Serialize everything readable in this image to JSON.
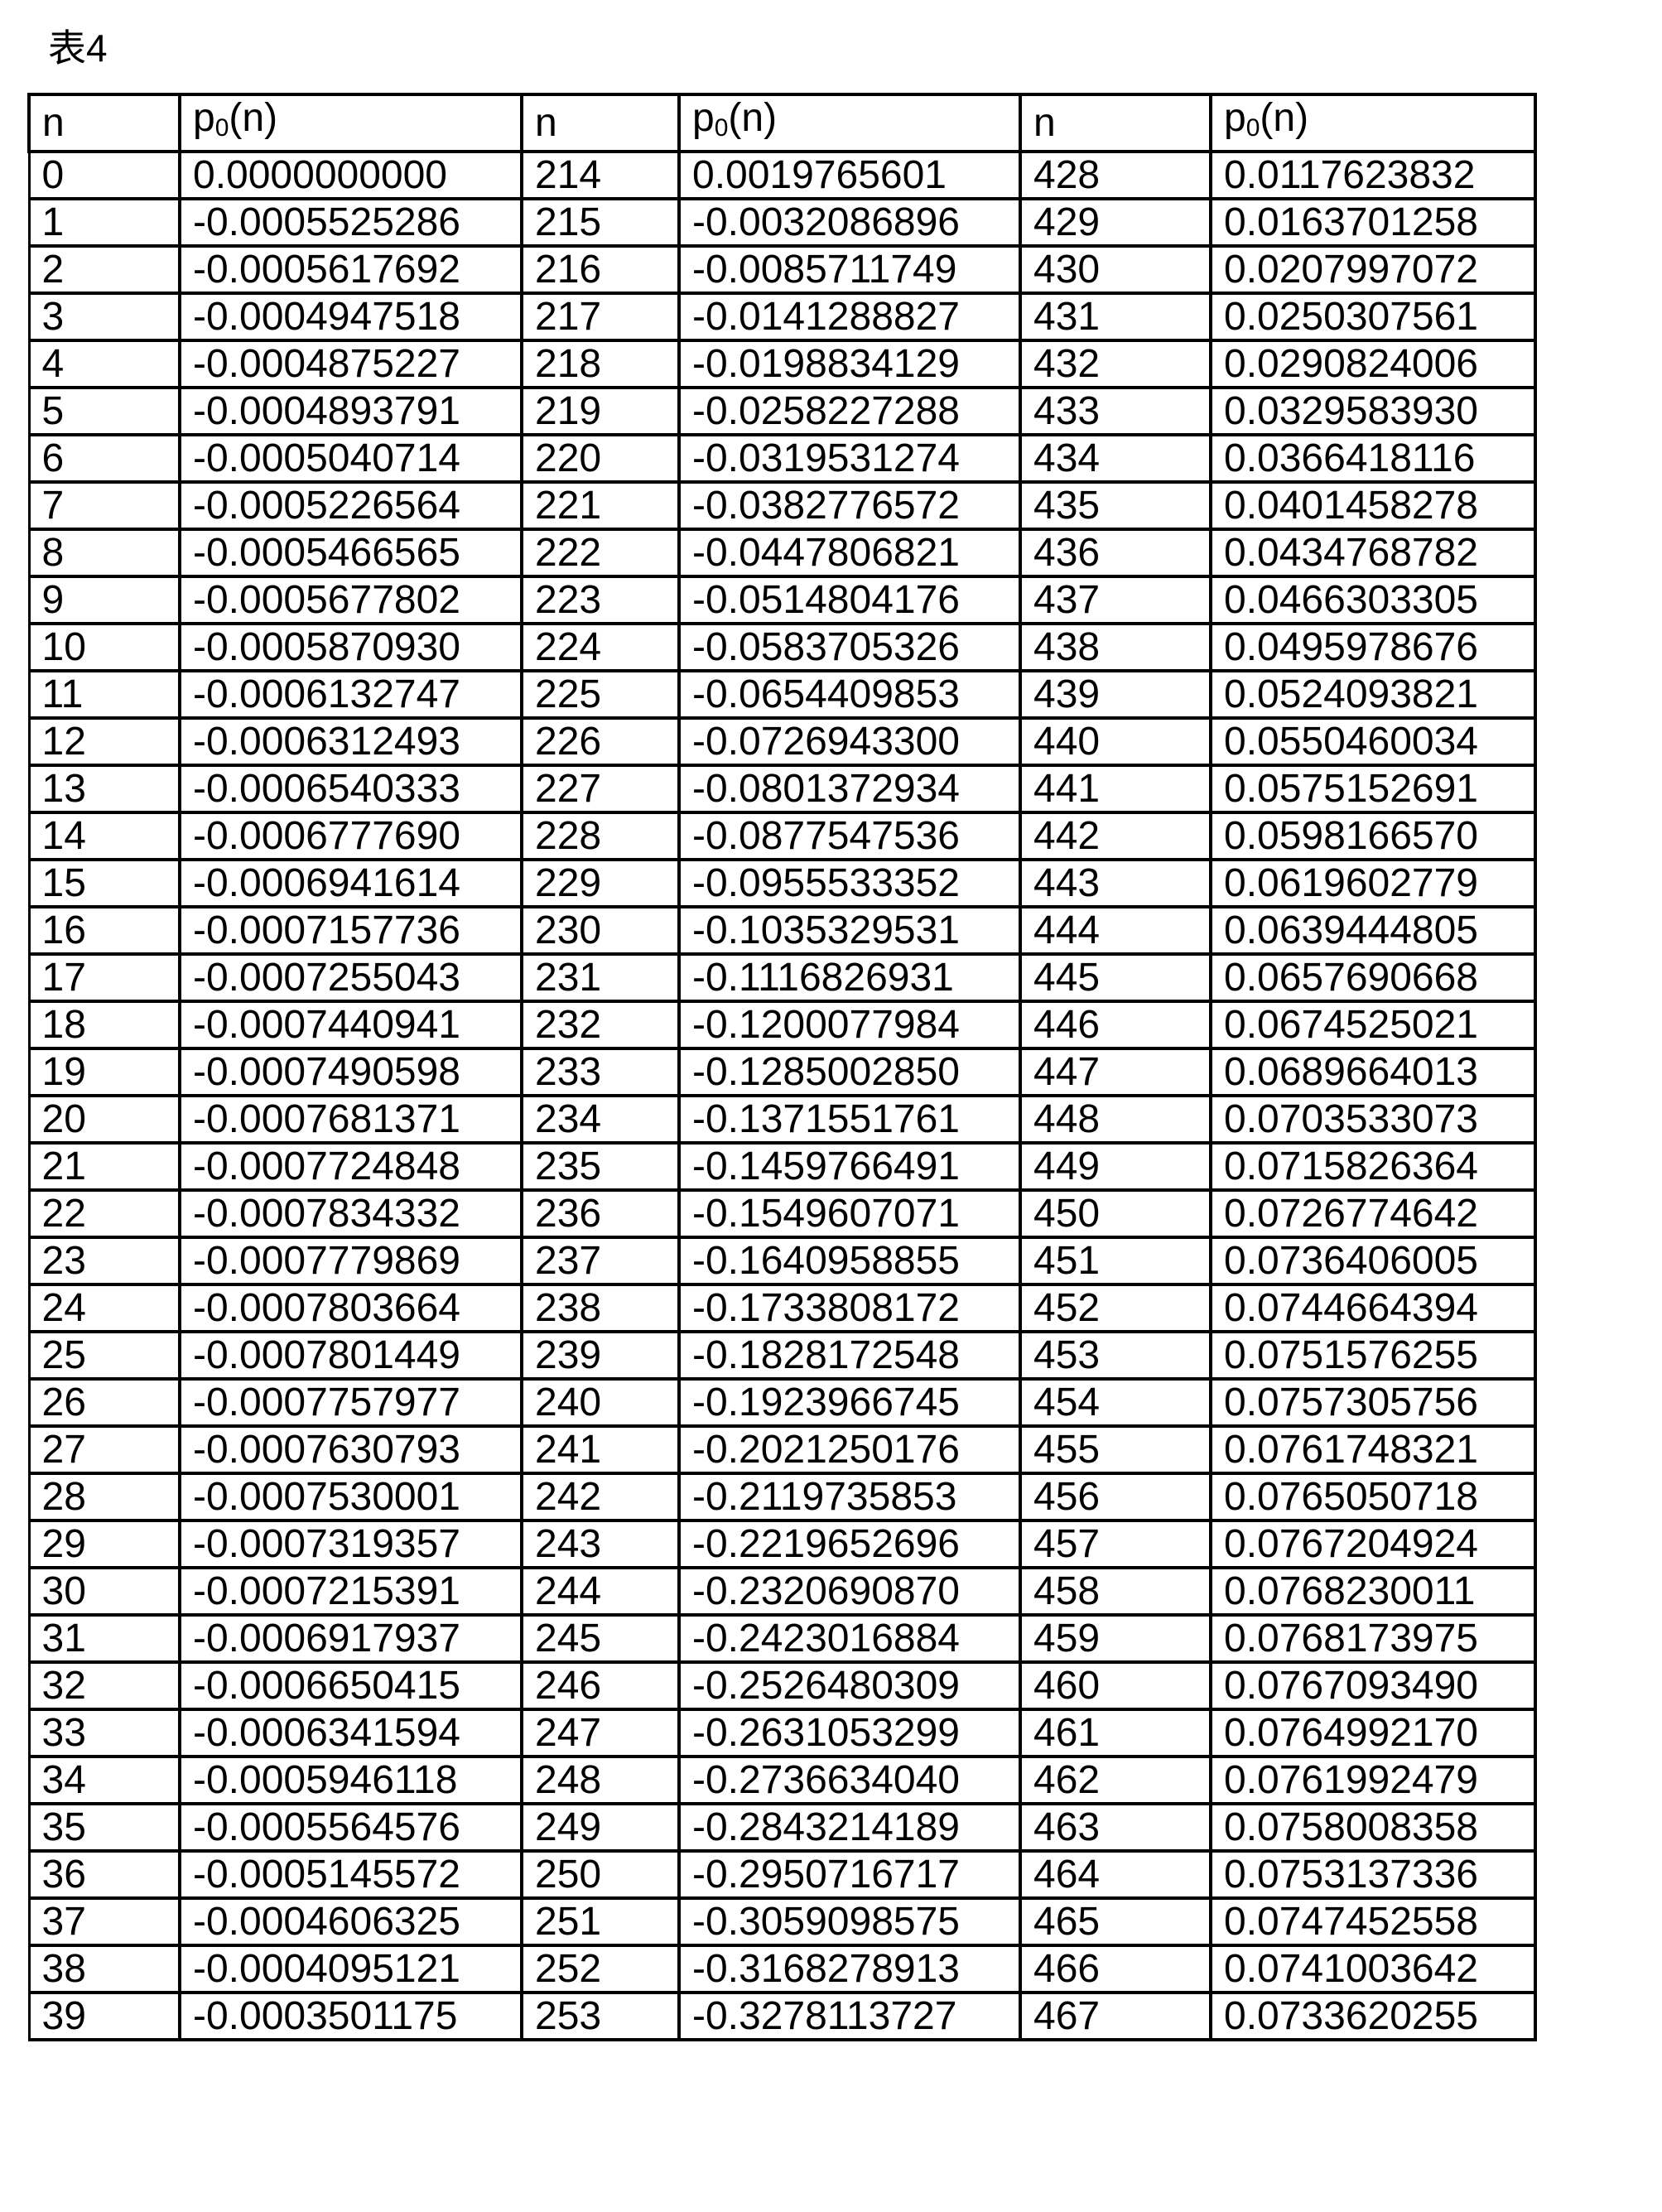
{
  "title": "表4",
  "table": {
    "headers": [
      {
        "base": "n",
        "sub": "",
        "suffix": ""
      },
      {
        "base": "p",
        "sub": "0",
        "suffix": "(n)"
      },
      {
        "base": "n",
        "sub": "",
        "suffix": ""
      },
      {
        "base": "p",
        "sub": "0",
        "suffix": "(n)"
      },
      {
        "base": "n",
        "sub": "",
        "suffix": ""
      },
      {
        "base": "p",
        "sub": "0",
        "suffix": "(n)"
      }
    ],
    "rows": [
      [
        "0",
        "0.0000000000",
        "214",
        "0.0019765601",
        "428",
        "0.0117623832"
      ],
      [
        "1",
        "-0.0005525286",
        "215",
        "-0.0032086896",
        "429",
        "0.0163701258"
      ],
      [
        "2",
        "-0.0005617692",
        "216",
        "-0.0085711749",
        "430",
        "0.0207997072"
      ],
      [
        "3",
        "-0.0004947518",
        "217",
        "-0.0141288827",
        "431",
        "0.0250307561"
      ],
      [
        "4",
        "-0.0004875227",
        "218",
        "-0.0198834129",
        "432",
        "0.0290824006"
      ],
      [
        "5",
        "-0.0004893791",
        "219",
        "-0.0258227288",
        "433",
        "0.0329583930"
      ],
      [
        "6",
        "-0.0005040714",
        "220",
        "-0.0319531274",
        "434",
        "0.0366418116"
      ],
      [
        "7",
        "-0.0005226564",
        "221",
        "-0.0382776572",
        "435",
        "0.0401458278"
      ],
      [
        "8",
        "-0.0005466565",
        "222",
        "-0.0447806821",
        "436",
        "0.0434768782"
      ],
      [
        "9",
        "-0.0005677802",
        "223",
        "-0.0514804176",
        "437",
        "0.0466303305"
      ],
      [
        "10",
        "-0.0005870930",
        "224",
        "-0.0583705326",
        "438",
        "0.0495978676"
      ],
      [
        "11",
        "-0.0006132747",
        "225",
        "-0.0654409853",
        "439",
        "0.0524093821"
      ],
      [
        "12",
        "-0.0006312493",
        "226",
        "-0.0726943300",
        "440",
        "0.0550460034"
      ],
      [
        "13",
        "-0.0006540333",
        "227",
        "-0.0801372934",
        "441",
        "0.0575152691"
      ],
      [
        "14",
        "-0.0006777690",
        "228",
        "-0.0877547536",
        "442",
        "0.0598166570"
      ],
      [
        "15",
        "-0.0006941614",
        "229",
        "-0.0955533352",
        "443",
        "0.0619602779"
      ],
      [
        "16",
        "-0.0007157736",
        "230",
        "-0.1035329531",
        "444",
        "0.0639444805"
      ],
      [
        "17",
        "-0.0007255043",
        "231",
        "-0.1116826931",
        "445",
        "0.0657690668"
      ],
      [
        "18",
        "-0.0007440941",
        "232",
        "-0.1200077984",
        "446",
        "0.0674525021"
      ],
      [
        "19",
        "-0.0007490598",
        "233",
        "-0.1285002850",
        "447",
        "0.0689664013"
      ],
      [
        "20",
        "-0.0007681371",
        "234",
        "-0.1371551761",
        "448",
        "0.0703533073"
      ],
      [
        "21",
        "-0.0007724848",
        "235",
        "-0.1459766491",
        "449",
        "0.0715826364"
      ],
      [
        "22",
        "-0.0007834332",
        "236",
        "-0.1549607071",
        "450",
        "0.0726774642"
      ],
      [
        "23",
        "-0.0007779869",
        "237",
        "-0.1640958855",
        "451",
        "0.0736406005"
      ],
      [
        "24",
        "-0.0007803664",
        "238",
        "-0.1733808172",
        "452",
        "0.0744664394"
      ],
      [
        "25",
        "-0.0007801449",
        "239",
        "-0.1828172548",
        "453",
        "0.0751576255"
      ],
      [
        "26",
        "-0.0007757977",
        "240",
        "-0.1923966745",
        "454",
        "0.0757305756"
      ],
      [
        "27",
        "-0.0007630793",
        "241",
        "-0.2021250176",
        "455",
        "0.0761748321"
      ],
      [
        "28",
        "-0.0007530001",
        "242",
        "-0.2119735853",
        "456",
        "0.0765050718"
      ],
      [
        "29",
        "-0.0007319357",
        "243",
        "-0.2219652696",
        "457",
        "0.0767204924"
      ],
      [
        "30",
        "-0.0007215391",
        "244",
        "-0.2320690870",
        "458",
        "0.0768230011"
      ],
      [
        "31",
        "-0.0006917937",
        "245",
        "-0.2423016884",
        "459",
        "0.0768173975"
      ],
      [
        "32",
        "-0.0006650415",
        "246",
        "-0.2526480309",
        "460",
        "0.0767093490"
      ],
      [
        "33",
        "-0.0006341594",
        "247",
        "-0.2631053299",
        "461",
        "0.0764992170"
      ],
      [
        "34",
        "-0.0005946118",
        "248",
        "-0.2736634040",
        "462",
        "0.0761992479"
      ],
      [
        "35",
        "-0.0005564576",
        "249",
        "-0.2843214189",
        "463",
        "0.0758008358"
      ],
      [
        "36",
        "-0.0005145572",
        "250",
        "-0.2950716717",
        "464",
        "0.0753137336"
      ],
      [
        "37",
        "-0.0004606325",
        "251",
        "-0.3059098575",
        "465",
        "0.0747452558"
      ],
      [
        "38",
        "-0.0004095121",
        "252",
        "-0.3168278913",
        "466",
        "0.0741003642"
      ],
      [
        "39",
        "-0.0003501175",
        "253",
        "-0.3278113727",
        "467",
        "0.0733620255"
      ]
    ]
  }
}
